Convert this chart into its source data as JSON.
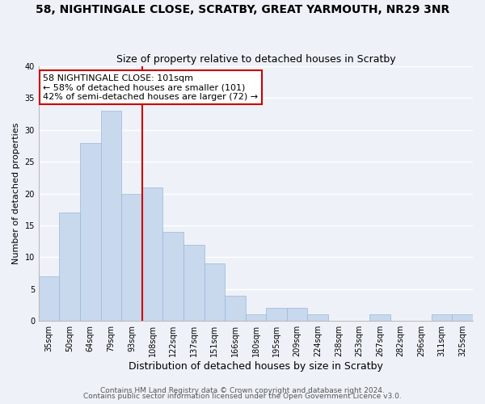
{
  "title": "58, NIGHTINGALE CLOSE, SCRATBY, GREAT YARMOUTH, NR29 3NR",
  "subtitle": "Size of property relative to detached houses in Scratby",
  "xlabel": "Distribution of detached houses by size in Scratby",
  "ylabel": "Number of detached properties",
  "bar_color": "#c8d8ed",
  "bar_edge_color": "#9ab8d8",
  "background_color": "#eef2f8",
  "grid_color": "#ffffff",
  "categories": [
    "35sqm",
    "50sqm",
    "64sqm",
    "79sqm",
    "93sqm",
    "108sqm",
    "122sqm",
    "137sqm",
    "151sqm",
    "166sqm",
    "180sqm",
    "195sqm",
    "209sqm",
    "224sqm",
    "238sqm",
    "253sqm",
    "267sqm",
    "282sqm",
    "296sqm",
    "311sqm",
    "325sqm"
  ],
  "values": [
    7,
    17,
    28,
    33,
    20,
    21,
    14,
    12,
    9,
    4,
    1,
    2,
    2,
    1,
    0,
    0,
    1,
    0,
    0,
    1,
    1
  ],
  "vline_color": "#cc0000",
  "ylim": [
    0,
    40
  ],
  "yticks": [
    0,
    5,
    10,
    15,
    20,
    25,
    30,
    35,
    40
  ],
  "annotation_line1": "58 NIGHTINGALE CLOSE: 101sqm",
  "annotation_line2": "← 58% of detached houses are smaller (101)",
  "annotation_line3": "42% of semi-detached houses are larger (72) →",
  "annotation_box_color": "#ffffff",
  "annotation_box_edge": "#cc0000",
  "footer_line1": "Contains HM Land Registry data © Crown copyright and database right 2024.",
  "footer_line2": "Contains public sector information licensed under the Open Government Licence v3.0.",
  "title_fontsize": 10,
  "subtitle_fontsize": 9,
  "tick_fontsize": 7,
  "ylabel_fontsize": 8,
  "xlabel_fontsize": 9,
  "annotation_fontsize": 8,
  "footer_fontsize": 6.5
}
